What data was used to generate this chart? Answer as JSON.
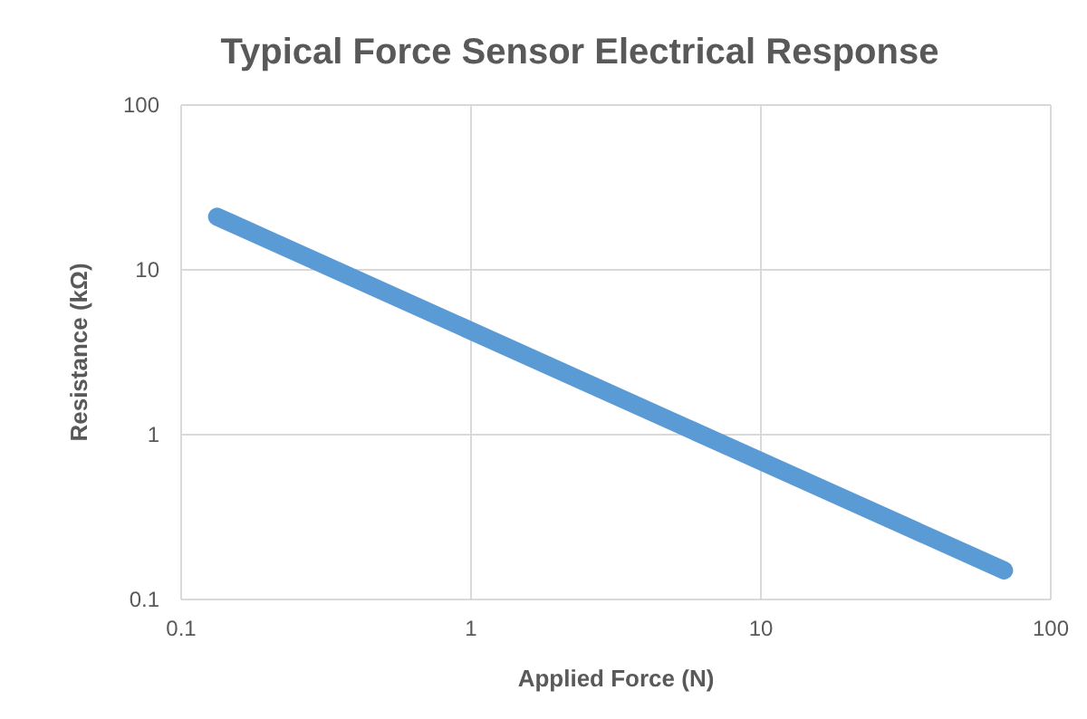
{
  "chart_data": {
    "type": "line",
    "title": "Typical Force Sensor Electrical Response",
    "xlabel": "Applied Force (N)",
    "ylabel": "Resistance (kΩ)",
    "log": "xy",
    "grid": true,
    "xlim": [
      0.1,
      100
    ],
    "ylim": [
      0.1,
      100
    ],
    "xticks": [
      0.1,
      1,
      10,
      100
    ],
    "yticks": [
      0.1,
      1,
      10,
      100
    ],
    "marker": "none",
    "line_style": "solid",
    "series": [
      {
        "color": "#5b9bd5",
        "x": [
          0.133,
          69
        ],
        "values": [
          21,
          0.15
        ]
      }
    ]
  }
}
